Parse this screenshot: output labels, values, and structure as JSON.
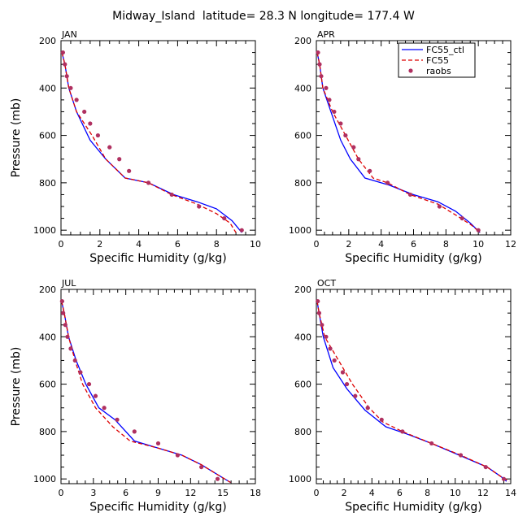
{
  "figure": {
    "title": "Midway_Island  latitude= 28.3 N longitude= 177.4 W"
  },
  "chart_data": [
    {
      "type": "line",
      "panel": "JAN",
      "xlabel": "Specific Humidity (g/kg)",
      "ylabel": "Pressure (mb)",
      "xlim": [
        0,
        10
      ],
      "ylim": [
        1020,
        200
      ],
      "xticks": [
        0,
        2,
        4,
        6,
        8,
        10
      ],
      "yticks": [
        200,
        400,
        600,
        800,
        1000
      ],
      "series": [
        {
          "name": "FC55_ctl",
          "color": "#0000ff",
          "dash": "solid",
          "points": [
            [
              0.05,
              250
            ],
            [
              0.2,
              300
            ],
            [
              0.4,
              400
            ],
            [
              0.8,
              500
            ],
            [
              1.5,
              620
            ],
            [
              2.3,
              700
            ],
            [
              3.3,
              780
            ],
            [
              4.5,
              800
            ],
            [
              5.8,
              850
            ],
            [
              7.0,
              880
            ],
            [
              8.0,
              910
            ],
            [
              8.8,
              960
            ],
            [
              9.3,
              1010
            ]
          ]
        },
        {
          "name": "FC55",
          "color": "#dd0000",
          "dash": "dashed",
          "points": [
            [
              0.05,
              250
            ],
            [
              0.2,
              300
            ],
            [
              0.4,
              400
            ],
            [
              0.8,
              500
            ],
            [
              1.6,
              600
            ],
            [
              2.3,
              700
            ],
            [
              3.3,
              780
            ],
            [
              4.5,
              800
            ],
            [
              5.7,
              850
            ],
            [
              7.0,
              890
            ],
            [
              8.0,
              930
            ],
            [
              8.7,
              970
            ],
            [
              9.0,
              1010
            ]
          ]
        },
        {
          "name": "raobs",
          "color": "#b03060",
          "dash": "marker",
          "points": [
            [
              0.1,
              250
            ],
            [
              0.2,
              300
            ],
            [
              0.3,
              350
            ],
            [
              0.5,
              400
            ],
            [
              0.8,
              450
            ],
            [
              1.2,
              500
            ],
            [
              1.5,
              550
            ],
            [
              1.9,
              600
            ],
            [
              2.5,
              650
            ],
            [
              3.0,
              700
            ],
            [
              3.5,
              750
            ],
            [
              4.5,
              800
            ],
            [
              5.7,
              850
            ],
            [
              7.1,
              900
            ],
            [
              8.4,
              950
            ],
            [
              9.3,
              1000
            ]
          ]
        }
      ]
    },
    {
      "type": "line",
      "panel": "APR",
      "xlabel": "Specific Humidity (g/kg)",
      "ylabel": "Pressure (mb)",
      "xlim": [
        0,
        12
      ],
      "ylim": [
        1020,
        200
      ],
      "xticks": [
        0,
        2,
        4,
        6,
        8,
        10,
        12
      ],
      "yticks": [
        200,
        400,
        600,
        800,
        1000
      ],
      "series": [
        {
          "name": "FC55_ctl",
          "color": "#0000ff",
          "dash": "solid",
          "points": [
            [
              0.05,
              250
            ],
            [
              0.2,
              300
            ],
            [
              0.4,
              400
            ],
            [
              0.9,
              500
            ],
            [
              1.5,
              620
            ],
            [
              2.1,
              700
            ],
            [
              3.0,
              780
            ],
            [
              4.5,
              810
            ],
            [
              6.0,
              850
            ],
            [
              7.5,
              880
            ],
            [
              8.6,
              920
            ],
            [
              9.5,
              970
            ],
            [
              10.1,
              1010
            ]
          ]
        },
        {
          "name": "FC55",
          "color": "#dd0000",
          "dash": "dashed",
          "points": [
            [
              0.05,
              250
            ],
            [
              0.2,
              300
            ],
            [
              0.4,
              400
            ],
            [
              1.0,
              500
            ],
            [
              1.8,
              600
            ],
            [
              2.6,
              700
            ],
            [
              3.5,
              780
            ],
            [
              4.4,
              800
            ],
            [
              5.8,
              850
            ],
            [
              7.5,
              890
            ],
            [
              8.7,
              940
            ],
            [
              9.6,
              980
            ],
            [
              10.1,
              1010
            ]
          ]
        },
        {
          "name": "raobs",
          "color": "#b03060",
          "dash": "marker",
          "points": [
            [
              0.1,
              250
            ],
            [
              0.2,
              300
            ],
            [
              0.3,
              350
            ],
            [
              0.6,
              400
            ],
            [
              0.8,
              450
            ],
            [
              1.1,
              500
            ],
            [
              1.5,
              550
            ],
            [
              1.8,
              600
            ],
            [
              2.3,
              650
            ],
            [
              2.6,
              700
            ],
            [
              3.3,
              750
            ],
            [
              4.4,
              800
            ],
            [
              5.8,
              850
            ],
            [
              7.6,
              900
            ],
            [
              9.0,
              950
            ],
            [
              10.0,
              1000
            ]
          ]
        }
      ]
    },
    {
      "type": "line",
      "panel": "JUL",
      "xlabel": "Specific Humidity (g/kg)",
      "ylabel": "Pressure (mb)",
      "xlim": [
        0,
        18
      ],
      "ylim": [
        1020,
        200
      ],
      "xticks": [
        0,
        3,
        6,
        9,
        12,
        15,
        18
      ],
      "yticks": [
        200,
        400,
        600,
        800,
        1000
      ],
      "series": [
        {
          "name": "FC55_ctl",
          "color": "#0000ff",
          "dash": "solid",
          "points": [
            [
              0.05,
              250
            ],
            [
              0.3,
              300
            ],
            [
              0.7,
              400
            ],
            [
              1.4,
              500
            ],
            [
              2.3,
              600
            ],
            [
              3.5,
              700
            ],
            [
              5.0,
              750
            ],
            [
              6.8,
              840
            ],
            [
              9.0,
              870
            ],
            [
              11.2,
              900
            ],
            [
              13.0,
              940
            ],
            [
              14.8,
              990
            ],
            [
              15.7,
              1015
            ]
          ]
        },
        {
          "name": "FC55",
          "color": "#dd0000",
          "dash": "dashed",
          "points": [
            [
              0.05,
              250
            ],
            [
              0.3,
              300
            ],
            [
              0.7,
              400
            ],
            [
              1.3,
              500
            ],
            [
              2.0,
              600
            ],
            [
              3.2,
              700
            ],
            [
              4.8,
              780
            ],
            [
              6.4,
              840
            ],
            [
              9.0,
              870
            ],
            [
              11.2,
              900
            ],
            [
              13.0,
              940
            ],
            [
              14.8,
              990
            ],
            [
              15.7,
              1015
            ]
          ]
        },
        {
          "name": "raobs",
          "color": "#b03060",
          "dash": "marker",
          "points": [
            [
              0.1,
              250
            ],
            [
              0.2,
              300
            ],
            [
              0.4,
              350
            ],
            [
              0.6,
              400
            ],
            [
              0.9,
              450
            ],
            [
              1.3,
              500
            ],
            [
              1.8,
              550
            ],
            [
              2.6,
              600
            ],
            [
              3.2,
              650
            ],
            [
              4.0,
              700
            ],
            [
              5.2,
              750
            ],
            [
              6.8,
              800
            ],
            [
              9.0,
              850
            ],
            [
              10.8,
              900
            ],
            [
              13.0,
              950
            ],
            [
              14.5,
              1000
            ]
          ]
        }
      ]
    },
    {
      "type": "line",
      "panel": "OCT",
      "xlabel": "Specific Humidity (g/kg)",
      "ylabel": "Pressure (mb)",
      "xlim": [
        0,
        14
      ],
      "ylim": [
        1020,
        200
      ],
      "xticks": [
        0,
        2,
        4,
        6,
        8,
        10,
        12,
        14
      ],
      "yticks": [
        200,
        400,
        600,
        800,
        1000
      ],
      "series": [
        {
          "name": "FC55_ctl",
          "color": "#0000ff",
          "dash": "solid",
          "points": [
            [
              0.05,
              250
            ],
            [
              0.2,
              300
            ],
            [
              0.5,
              400
            ],
            [
              1.2,
              530
            ],
            [
              2.2,
              620
            ],
            [
              3.5,
              710
            ],
            [
              5.0,
              780
            ],
            [
              6.5,
              810
            ],
            [
              8.3,
              850
            ],
            [
              10.3,
              900
            ],
            [
              12.3,
              950
            ],
            [
              13.3,
              990
            ],
            [
              13.7,
              1010
            ]
          ]
        },
        {
          "name": "FC55",
          "color": "#dd0000",
          "dash": "dashed",
          "points": [
            [
              0.05,
              250
            ],
            [
              0.2,
              300
            ],
            [
              0.6,
              400
            ],
            [
              1.6,
              500
            ],
            [
              2.6,
              600
            ],
            [
              3.8,
              700
            ],
            [
              4.8,
              760
            ],
            [
              6.2,
              800
            ],
            [
              8.3,
              850
            ],
            [
              10.4,
              900
            ],
            [
              12.3,
              950
            ],
            [
              13.3,
              990
            ],
            [
              13.9,
              1010
            ]
          ]
        },
        {
          "name": "raobs",
          "color": "#b03060",
          "dash": "marker",
          "points": [
            [
              0.1,
              250
            ],
            [
              0.2,
              300
            ],
            [
              0.4,
              350
            ],
            [
              0.7,
              400
            ],
            [
              1.0,
              450
            ],
            [
              1.3,
              500
            ],
            [
              1.9,
              550
            ],
            [
              2.2,
              600
            ],
            [
              2.8,
              650
            ],
            [
              3.7,
              700
            ],
            [
              4.7,
              750
            ],
            [
              6.2,
              800
            ],
            [
              8.3,
              850
            ],
            [
              10.4,
              900
            ],
            [
              12.2,
              950
            ],
            [
              13.5,
              1000
            ]
          ]
        }
      ]
    }
  ],
  "legend": {
    "panel_index": 1,
    "entries": [
      {
        "label": "FC55_ctl",
        "color": "#0000ff",
        "style": "solid"
      },
      {
        "label": "FC55",
        "color": "#dd0000",
        "style": "dashed"
      },
      {
        "label": "raobs",
        "color": "#b03060",
        "style": "marker"
      }
    ]
  }
}
